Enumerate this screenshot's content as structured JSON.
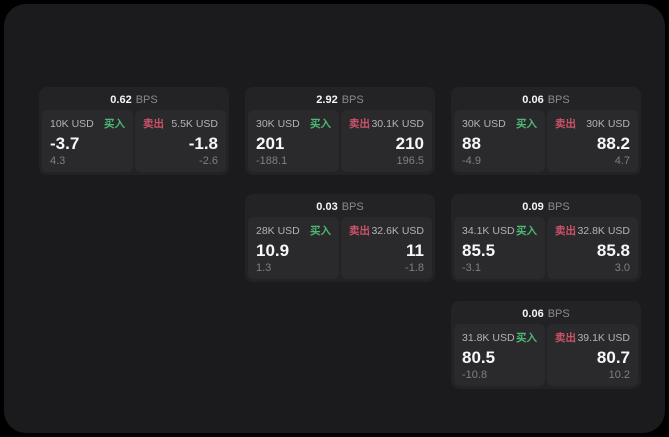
{
  "colors": {
    "page_bg": "#000000",
    "panel_bg": "#1b1b1d",
    "card_bg": "#232325",
    "subcard_bg": "#2a2a2d",
    "text_primary": "#f7f7f9",
    "text_secondary": "#b3b3b6",
    "text_muted": "#7f7f84",
    "buy_green": "#4db873",
    "sell_red": "#cc5266"
  },
  "labels": {
    "bps_unit": "BPS",
    "buy": "买入",
    "sell": "卖出"
  },
  "cards": [
    {
      "bps": "0.62",
      "row": 1,
      "col": 1,
      "buy": {
        "amount": "10K USD",
        "value": "-3.7",
        "delta": "4.3"
      },
      "sell": {
        "amount": "5.5K USD",
        "value": "-1.8",
        "delta": "-2.6"
      }
    },
    {
      "bps": "2.92",
      "row": 1,
      "col": 2,
      "buy": {
        "amount": "30K USD",
        "value": "201",
        "delta": "-188.1"
      },
      "sell": {
        "amount": "30.1K USD",
        "value": "210",
        "delta": "196.5"
      }
    },
    {
      "bps": "0.06",
      "row": 1,
      "col": 3,
      "buy": {
        "amount": "30K USD",
        "value": "88",
        "delta": "-4.9"
      },
      "sell": {
        "amount": "30K USD",
        "value": "88.2",
        "delta": "4.7"
      }
    },
    {
      "bps": "0.03",
      "row": 2,
      "col": 2,
      "buy": {
        "amount": "28K USD",
        "value": "10.9",
        "delta": "1.3"
      },
      "sell": {
        "amount": "32.6K USD",
        "value": "11",
        "delta": "-1.8"
      }
    },
    {
      "bps": "0.09",
      "row": 2,
      "col": 3,
      "buy": {
        "amount": "34.1K USD",
        "value": "85.5",
        "delta": "-3.1"
      },
      "sell": {
        "amount": "32.8K USD",
        "value": "85.8",
        "delta": "3.0"
      }
    },
    {
      "bps": "0.06",
      "row": 3,
      "col": 3,
      "buy": {
        "amount": "31.8K USD",
        "value": "80.5",
        "delta": "-10.8"
      },
      "sell": {
        "amount": "39.1K USD",
        "value": "80.7",
        "delta": "10.2"
      }
    }
  ]
}
